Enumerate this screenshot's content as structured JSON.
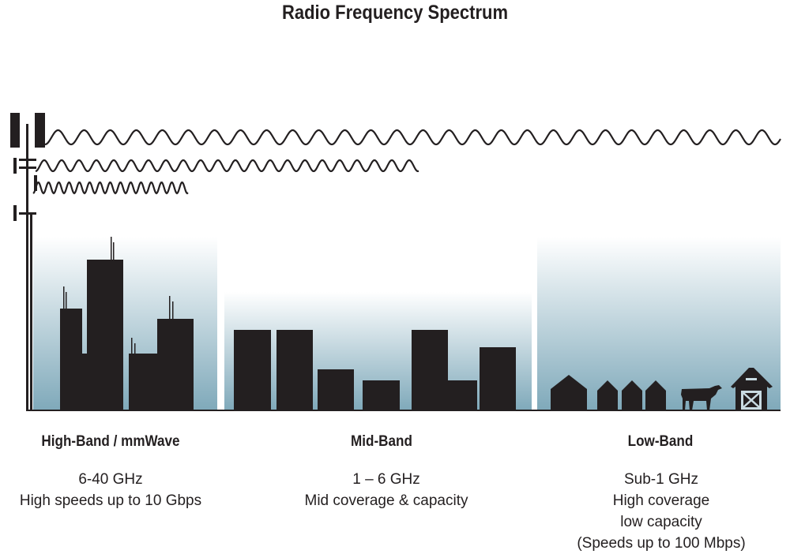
{
  "title": "Radio Frequency Spectrum",
  "bands": [
    {
      "name": "High-Band / mmWave",
      "lines": [
        "6-40 GHz",
        "High speeds up to 10 Gbps"
      ]
    },
    {
      "name": "Mid-Band",
      "lines": [
        "1 – 6 GHz",
        "Mid coverage & capacity"
      ]
    },
    {
      "name": "Low-Band",
      "lines": [
        "Sub-1 GHz",
        "High coverage",
        "low capacity",
        "(Speeds up to 100 Mbps)"
      ]
    }
  ],
  "colors": {
    "silhouette": "#231f20",
    "sky_bottom": "#7fa9ba",
    "sky_top": "#ffffff"
  },
  "icons": [
    "cell-tower-icon",
    "radio-wave",
    "building",
    "house",
    "cow-icon",
    "barn-icon"
  ]
}
